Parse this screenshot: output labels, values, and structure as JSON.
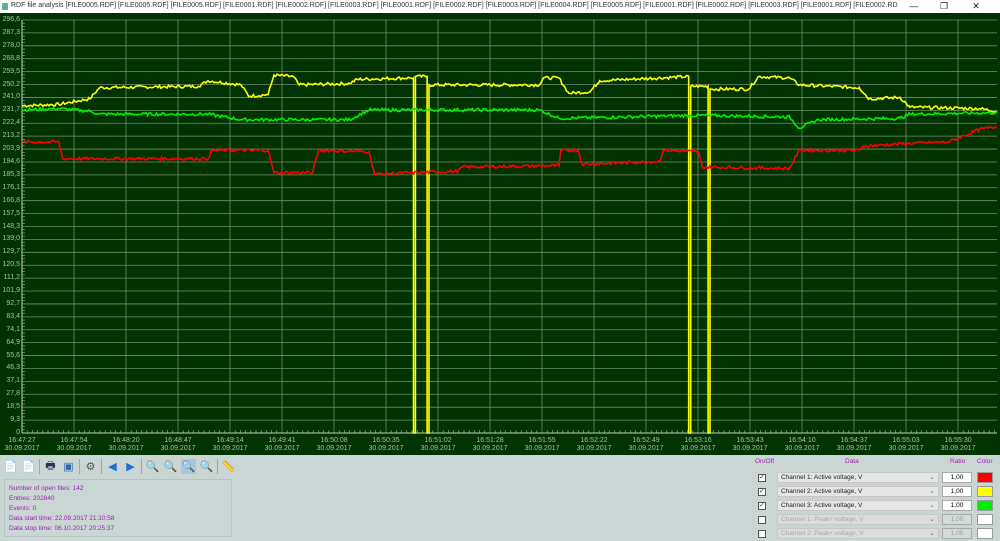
{
  "window": {
    "title": "RDF file analysis [FILE0005.RDF] [FILE0005.RDF] [FILE0005.RDF] [FILE0001.RDF] [FILE0002.RDF] [FILE0003.RDF] [FILE0001.RDF] [FILE0002.RDF] [FILE0003.RDF] [FILE0004.RDF] [FILE0005.RDF] [FILE0001.RDF] [FILE0002.RDF] [FILE0003.RDF] [FILE0001.RDF] [FILE0002.RD",
    "minimize": "—",
    "maximize": "❐",
    "close": "✕"
  },
  "chart_data": {
    "type": "line",
    "ylim": [
      0,
      296.6
    ],
    "y_ticks": [
      "296,6",
      "287,3",
      "278,0",
      "268,8",
      "259,5",
      "250,2",
      "241,0",
      "231,7",
      "222,4",
      "213,2",
      "203,9",
      "194,6",
      "185,3",
      "176,1",
      "166,8",
      "157,5",
      "148,3",
      "139,0",
      "129,7",
      "120,5",
      "111,2",
      "101,9",
      "92,7",
      "83,4",
      "74,1",
      "64,9",
      "55,6",
      "46,3",
      "37,1",
      "27,8",
      "18,5",
      "9,3",
      "0"
    ],
    "x_ticks": [
      {
        "time": "16:47:27",
        "date": "30.09.2017"
      },
      {
        "time": "16:47:54",
        "date": "30.09.2017"
      },
      {
        "time": "16:48:20",
        "date": "30.09.2017"
      },
      {
        "time": "16:48:47",
        "date": "30.09.2017"
      },
      {
        "time": "16:49:14",
        "date": "30.09.2017"
      },
      {
        "time": "16:49:41",
        "date": "30.09.2017"
      },
      {
        "time": "16:50:08",
        "date": "30.09.2017"
      },
      {
        "time": "16:50:35",
        "date": "30.09.2017"
      },
      {
        "time": "16:51:02",
        "date": "30.09.2017"
      },
      {
        "time": "16:51:28",
        "date": "30.09.2017"
      },
      {
        "time": "16:51:55",
        "date": "30.09.2017"
      },
      {
        "time": "16:52:22",
        "date": "30.09.2017"
      },
      {
        "time": "16:52:49",
        "date": "30.09.2017"
      },
      {
        "time": "16:53:16",
        "date": "30.09.2017"
      },
      {
        "time": "16:53:43",
        "date": "30.09.2017"
      },
      {
        "time": "16:54:10",
        "date": "30.09.2017"
      },
      {
        "time": "16:54:37",
        "date": "30.09.2017"
      },
      {
        "time": "16:55:03",
        "date": "30.09.2017"
      },
      {
        "time": "16:55:30",
        "date": "30.09.2017"
      }
    ],
    "grid": true,
    "series": [
      {
        "name": "Channel 2: Active voltage, V",
        "color": "#ffff00",
        "points": [
          [
            "16:47:27",
            235
          ],
          [
            "16:47:46",
            236
          ],
          [
            "16:48:02",
            240
          ],
          [
            "16:48:07",
            248
          ],
          [
            "16:48:58",
            249
          ],
          [
            "16:49:03",
            253
          ],
          [
            "16:49:20",
            250
          ],
          [
            "16:49:24",
            242
          ],
          [
            "16:49:34",
            243
          ],
          [
            "16:49:37",
            257
          ],
          [
            "16:49:47",
            256
          ],
          [
            "16:49:50",
            250
          ],
          [
            "16:50:16",
            251
          ],
          [
            "16:50:20",
            254
          ],
          [
            "16:50:47",
            255
          ],
          [
            "16:50:49",
            255
          ],
          [
            "16:50:49",
            0
          ],
          [
            "16:50:50",
            0
          ],
          [
            "16:50:50",
            256
          ],
          [
            "16:50:56",
            256
          ],
          [
            "16:50:56",
            0
          ],
          [
            "16:50:57",
            0
          ],
          [
            "16:50:57",
            250
          ],
          [
            "16:51:54",
            250
          ],
          [
            "16:51:56",
            255
          ],
          [
            "16:52:04",
            255
          ],
          [
            "16:52:09",
            244
          ],
          [
            "16:52:20",
            245
          ],
          [
            "16:52:25",
            253
          ],
          [
            "16:53:11",
            256
          ],
          [
            "16:53:11",
            0
          ],
          [
            "16:53:12",
            0
          ],
          [
            "16:53:12",
            249
          ],
          [
            "16:53:21",
            249
          ],
          [
            "16:53:21",
            0
          ],
          [
            "16:53:22",
            0
          ],
          [
            "16:53:22",
            247
          ],
          [
            "16:53:42",
            247
          ],
          [
            "16:53:47",
            256
          ],
          [
            "16:54:03",
            255
          ],
          [
            "16:54:08",
            250
          ],
          [
            "16:54:39",
            248
          ],
          [
            "16:54:44",
            240
          ],
          [
            "16:55:00",
            241
          ],
          [
            "16:55:05",
            234
          ],
          [
            "16:55:41",
            233
          ],
          [
            "16:55:50",
            231
          ]
        ]
      },
      {
        "name": "Channel 3: Active voltage, V",
        "color": "#00ee00",
        "points": [
          [
            "16:47:27",
            232
          ],
          [
            "16:47:46",
            233
          ],
          [
            "16:48:02",
            231
          ],
          [
            "16:48:07",
            229
          ],
          [
            "16:49:03",
            229
          ],
          [
            "16:49:20",
            225
          ],
          [
            "16:50:16",
            225
          ],
          [
            "16:50:26",
            232
          ],
          [
            "16:51:54",
            232
          ],
          [
            "16:52:04",
            226
          ],
          [
            "16:53:11",
            228
          ],
          [
            "16:53:21",
            228
          ],
          [
            "16:54:03",
            227
          ],
          [
            "16:54:08",
            219
          ],
          [
            "16:54:18",
            225
          ],
          [
            "16:55:00",
            226
          ],
          [
            "16:55:05",
            229
          ],
          [
            "16:55:50",
            230
          ]
        ]
      },
      {
        "name": "Channel 1: Active voltage, V",
        "color": "#ff0000",
        "points": [
          [
            "16:47:27",
            209
          ],
          [
            "16:47:46",
            209
          ],
          [
            "16:47:48",
            197
          ],
          [
            "16:49:03",
            197
          ],
          [
            "16:49:05",
            203
          ],
          [
            "16:49:34",
            203
          ],
          [
            "16:49:37",
            187
          ],
          [
            "16:49:57",
            187
          ],
          [
            "16:50:00",
            203
          ],
          [
            "16:50:26",
            202
          ],
          [
            "16:50:29",
            186
          ],
          [
            "16:51:12",
            188
          ],
          [
            "16:51:14",
            191
          ],
          [
            "16:52:04",
            192
          ],
          [
            "16:52:05",
            203
          ],
          [
            "16:52:14",
            203
          ],
          [
            "16:52:16",
            193
          ],
          [
            "16:52:56",
            195
          ],
          [
            "16:52:58",
            203
          ],
          [
            "16:53:16",
            202
          ],
          [
            "16:53:18",
            191
          ],
          [
            "16:54:03",
            190
          ],
          [
            "16:54:08",
            203
          ],
          [
            "16:54:39",
            203
          ],
          [
            "16:54:41",
            206
          ],
          [
            "16:55:05",
            208
          ],
          [
            "16:55:25",
            209
          ],
          [
            "16:55:41",
            218
          ],
          [
            "16:55:50",
            220
          ]
        ]
      }
    ]
  },
  "toolbar": [
    {
      "name": "add-file-icon",
      "glyph": "📄",
      "color": "#2a8a2a"
    },
    {
      "name": "remove-file-icon",
      "glyph": "📄",
      "color": "#c33"
    },
    {
      "sep": true
    },
    {
      "name": "print-icon",
      "glyph": "🖶",
      "color": "#235"
    },
    {
      "name": "export-image-icon",
      "glyph": "▣",
      "color": "#2a6ab0"
    },
    {
      "sep": true
    },
    {
      "name": "settings-gear-icon",
      "glyph": "⚙",
      "color": "#555"
    },
    {
      "sep": true
    },
    {
      "name": "arrow-left-icon",
      "glyph": "◀",
      "color": "#1a6fd0"
    },
    {
      "name": "arrow-right-icon",
      "glyph": "▶",
      "color": "#1a6fd0"
    },
    {
      "sep": true
    },
    {
      "name": "zoom-in-icon",
      "glyph": "🔍",
      "color": "#444"
    },
    {
      "name": "zoom-out-icon",
      "glyph": "🔍",
      "color": "#777"
    },
    {
      "name": "zoom-area-icon",
      "glyph": "🔍",
      "color": "#444",
      "selected": true
    },
    {
      "name": "zoom-reset-icon",
      "glyph": "🔍",
      "color": "#111"
    },
    {
      "sep": true
    },
    {
      "name": "ruler-icon",
      "glyph": "📏",
      "color": "#666"
    }
  ],
  "info": {
    "open_files": "Number of open files: 142",
    "entries": "Entries: 202840",
    "events": "Events: 0",
    "start_time": "Data start time: 22.09.2017 21:10:58",
    "stop_time": "Data stop time: 06.10.2017 20:25:37"
  },
  "channels": {
    "headers": {
      "onoff": "On/Off",
      "data": "Data",
      "ratio": "Ratio",
      "color": "Color"
    },
    "rows": [
      {
        "checked": true,
        "label": "Channel 1: Active voltage, V",
        "ratio": "1,00",
        "color": "#ff0000",
        "enabled": true
      },
      {
        "checked": true,
        "label": "Channel 2: Active voltage, V",
        "ratio": "1,00",
        "color": "#ffff00",
        "enabled": true
      },
      {
        "checked": true,
        "label": "Channel 3: Active voltage, V",
        "ratio": "1,00",
        "color": "#00ee00",
        "enabled": true
      },
      {
        "checked": false,
        "label": "Channel 1: Peak+ voltage, V",
        "ratio": "1,00",
        "color": "#ffffff",
        "enabled": false
      },
      {
        "checked": false,
        "label": "Channel 2: Peak+ voltage, V",
        "ratio": "1,00",
        "color": "#ffffff",
        "enabled": false
      }
    ]
  }
}
